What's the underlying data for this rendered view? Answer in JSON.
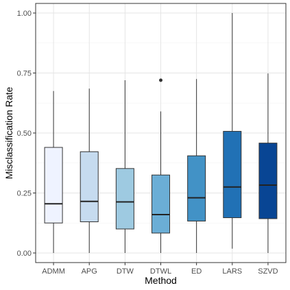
{
  "chart_data": {
    "type": "box",
    "title": "",
    "xlabel": "Method",
    "ylabel": "Misclassification Rate",
    "ylim": [
      -0.04,
      1.04
    ],
    "yticks": [
      0.0,
      0.25,
      0.5,
      0.75,
      1.0
    ],
    "ytick_labels": [
      "0.00",
      "0.25",
      "0.50",
      "0.75",
      "1.00"
    ],
    "grid": true,
    "legend": "none",
    "categories": [
      "ADMM",
      "APG",
      "DTW",
      "DTWL",
      "ED",
      "LARS",
      "SZVD"
    ],
    "boxes": [
      {
        "category": "ADMM",
        "whisker_low": 0.0,
        "q1": 0.125,
        "median": 0.205,
        "q3": 0.44,
        "whisker_high": 0.675,
        "outliers": [],
        "color": "#eff3ff"
      },
      {
        "category": "APG",
        "whisker_low": 0.0,
        "q1": 0.13,
        "median": 0.215,
        "q3": 0.422,
        "whisker_high": 0.685,
        "outliers": [],
        "color": "#c6dbef"
      },
      {
        "category": "DTW",
        "whisker_low": 0.0,
        "q1": 0.1,
        "median": 0.213,
        "q3": 0.352,
        "whisker_high": 0.72,
        "outliers": [],
        "color": "#9ecae1"
      },
      {
        "category": "DTWL",
        "whisker_low": 0.0,
        "q1": 0.083,
        "median": 0.16,
        "q3": 0.325,
        "whisker_high": 0.59,
        "outliers": [
          0.72
        ],
        "color": "#6baed6"
      },
      {
        "category": "ED",
        "whisker_low": 0.0,
        "q1": 0.133,
        "median": 0.23,
        "q3": 0.405,
        "whisker_high": 0.725,
        "outliers": [],
        "color": "#4292c6"
      },
      {
        "category": "LARS",
        "whisker_low": 0.018,
        "q1": 0.147,
        "median": 0.275,
        "q3": 0.507,
        "whisker_high": 1.0,
        "outliers": [],
        "color": "#2171b5"
      },
      {
        "category": "SZVD",
        "whisker_low": 0.0,
        "q1": 0.143,
        "median": 0.283,
        "q3": 0.458,
        "whisker_high": 0.748,
        "outliers": [],
        "color": "#084594"
      }
    ]
  }
}
